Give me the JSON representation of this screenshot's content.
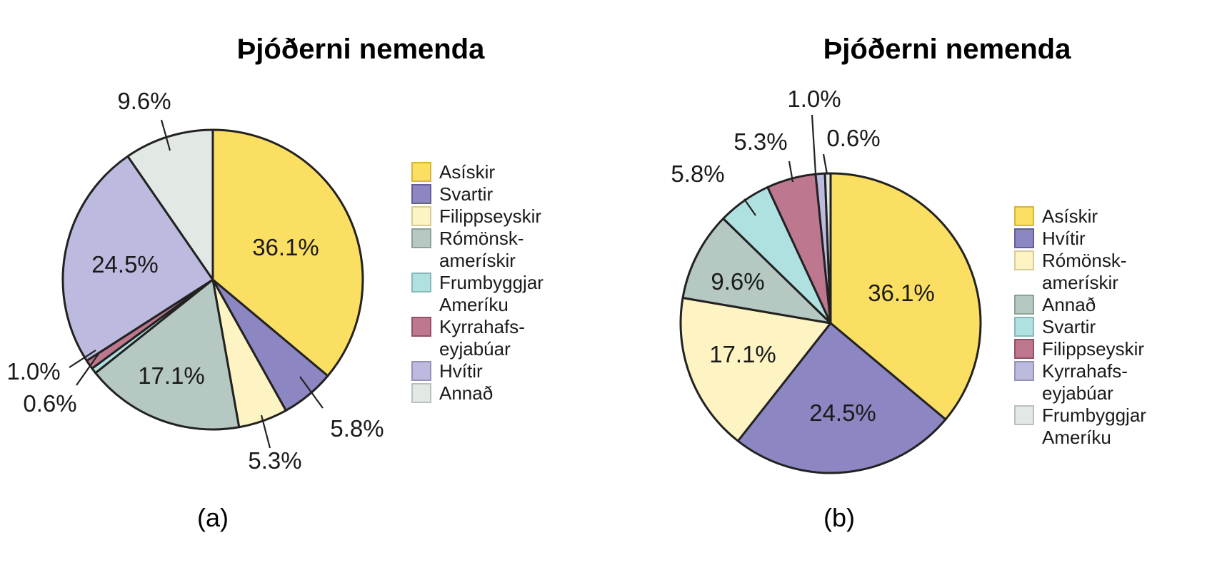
{
  "chart_data": [
    {
      "type": "pie",
      "title": "Þjóðerni nemenda",
      "panel_label": "(a)",
      "legend_position": "right",
      "slices": [
        {
          "label": "Asískir",
          "value": 36.1,
          "value_label": "36.1%",
          "color": "#fbdf63",
          "legend_text": [
            "Asískir"
          ]
        },
        {
          "label": "Svartir",
          "value": 5.8,
          "value_label": "5.8%",
          "color": "#8c87c3",
          "legend_text": [
            "Svartir"
          ]
        },
        {
          "label": "Filippseyskir",
          "value": 5.3,
          "value_label": "5.3%",
          "color": "#fef4c3",
          "legend_text": [
            "Filippseyskir"
          ]
        },
        {
          "label": "Rómönsk-amerískir",
          "value": 17.1,
          "value_label": "17.1%",
          "color": "#b5c8c2",
          "legend_text": [
            "Rómönsk-",
            "amerískir"
          ]
        },
        {
          "label": "Frumbyggjar Ameríku",
          "value": 0.6,
          "value_label": "0.6%",
          "color": "#b0e1e1",
          "legend_text": [
            "Frumbyggjar",
            "Ameríku"
          ]
        },
        {
          "label": "Kyrrahafs-eyjabúar",
          "value": 1.0,
          "value_label": "1.0%",
          "color": "#bd7890",
          "legend_text": [
            "Kyrrahafs-",
            "eyjabúar"
          ]
        },
        {
          "label": "Hvítir",
          "value": 24.5,
          "value_label": "24.5%",
          "color": "#bcbadf",
          "legend_text": [
            "Hvítir"
          ]
        },
        {
          "label": "Annað",
          "value": 9.6,
          "value_label": "9.6%",
          "color": "#e2e8e4",
          "legend_text": [
            "Annað"
          ]
        }
      ]
    },
    {
      "type": "pie",
      "title": "Þjóðerni nemenda",
      "panel_label": "(b)",
      "legend_position": "right",
      "slices": [
        {
          "label": "Asískir",
          "value": 36.1,
          "value_label": "36.1%",
          "color": "#fbdf63",
          "legend_text": [
            "Asískir"
          ]
        },
        {
          "label": "Hvítir",
          "value": 24.5,
          "value_label": "24.5%",
          "color": "#8c87c3",
          "legend_text": [
            "Hvítir"
          ]
        },
        {
          "label": "Rómönsk-amerískir",
          "value": 17.1,
          "value_label": "17.1%",
          "color": "#fef4c3",
          "legend_text": [
            "Rómönsk-",
            "amerískir"
          ]
        },
        {
          "label": "Annað",
          "value": 9.6,
          "value_label": "9.6%",
          "color": "#b5c8c2",
          "legend_text": [
            "Annað"
          ]
        },
        {
          "label": "Svartir",
          "value": 5.8,
          "value_label": "5.8%",
          "color": "#b0e1e1",
          "legend_text": [
            "Svartir"
          ]
        },
        {
          "label": "Filippseyskir",
          "value": 5.3,
          "value_label": "5.3%",
          "color": "#bd7890",
          "legend_text": [
            "Filippseyskir"
          ]
        },
        {
          "label": "Kyrrahafs-eyjabúar",
          "value": 1.0,
          "value_label": "1.0%",
          "color": "#bcbadf",
          "legend_text": [
            "Kyrrahafs-",
            "eyjabúar"
          ]
        },
        {
          "label": "Frumbyggjar Ameríku",
          "value": 0.6,
          "value_label": "0.6%",
          "color": "#e2e8e4",
          "legend_text": [
            "Frumbyggjar",
            "Ameríku"
          ]
        }
      ]
    }
  ]
}
